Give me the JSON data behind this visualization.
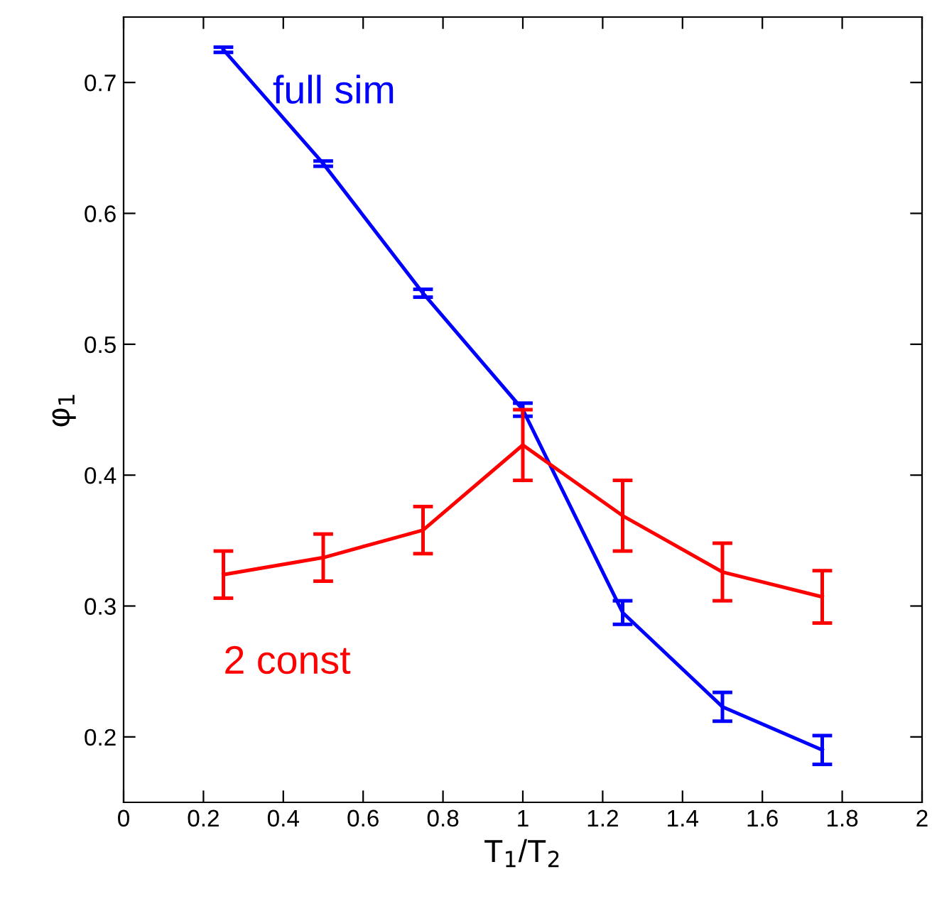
{
  "chart_data": {
    "type": "line",
    "xlabel": "T$_{1}$/T$_{2}$",
    "ylabel": "φ$_{1}$",
    "xlim": [
      0,
      2
    ],
    "xticks": [
      0,
      0.2,
      0.4,
      0.6,
      0.8,
      1,
      1.2,
      1.4,
      1.6,
      1.8,
      2
    ],
    "ylim": [
      0.15,
      0.75
    ],
    "yticks": [
      0.2,
      0.3,
      0.4,
      0.5,
      0.6,
      0.7
    ],
    "grid": false,
    "legend": false,
    "marker": "none",
    "line_style": "solid",
    "series": [
      {
        "name": "full sim",
        "color": "#0000ff",
        "x": [
          0.25,
          0.5,
          0.75,
          1,
          1.25,
          1.5,
          1.75
        ],
        "values": [
          0.725,
          0.638,
          0.539,
          0.45,
          0.295,
          0.223,
          0.19
        ],
        "errors": [
          0.002,
          0.002,
          0.003,
          0.005,
          0.009,
          0.011,
          0.011
        ]
      },
      {
        "name": "2 const",
        "color": "#ff0000",
        "x": [
          0.25,
          0.5,
          0.75,
          1,
          1.25,
          1.5,
          1.75
        ],
        "values": [
          0.324,
          0.337,
          0.358,
          0.423,
          0.369,
          0.326,
          0.307
        ],
        "errors": [
          0.018,
          0.018,
          0.018,
          0.027,
          0.027,
          0.022,
          0.02
        ]
      }
    ]
  }
}
